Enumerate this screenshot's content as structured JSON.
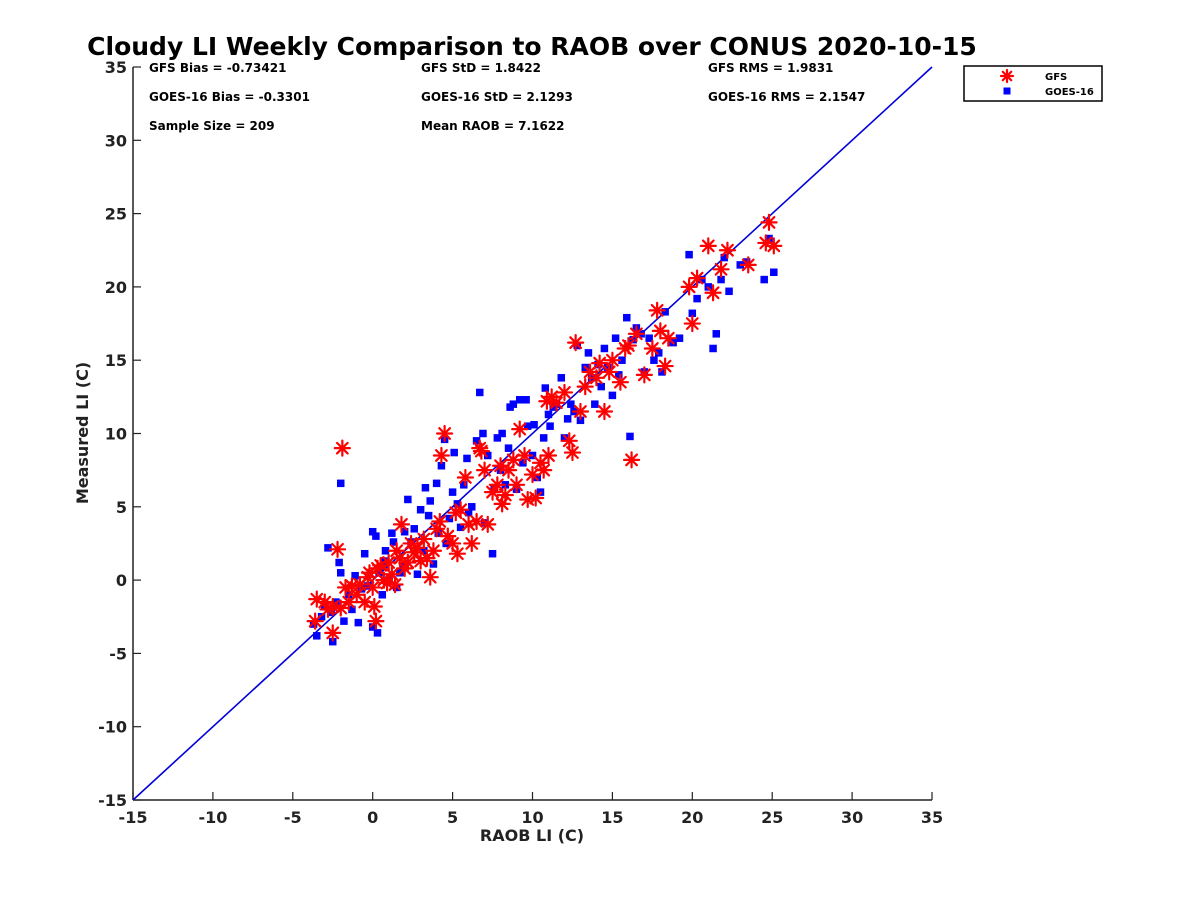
{
  "chart_data": {
    "type": "scatter",
    "title": "Cloudy LI Weekly Comparison to RAOB over CONUS 2020-10-15",
    "xlabel": "RAOB LI (C)",
    "ylabel": "Measured LI (C)",
    "xlim": [
      -15,
      35
    ],
    "ylim": [
      -15,
      35
    ],
    "xticks": [
      -15,
      -10,
      -5,
      0,
      5,
      10,
      15,
      20,
      25,
      30,
      35
    ],
    "yticks": [
      -15,
      -10,
      -5,
      0,
      5,
      10,
      15,
      20,
      25,
      30,
      35
    ],
    "grid": false,
    "legend_position": "top-right outside",
    "reference_line": {
      "type": "one-to-one",
      "from": [
        -15,
        -15
      ],
      "to": [
        35,
        35
      ],
      "color": "#0000dd"
    },
    "stats": [
      [
        "GFS Bias = -0.73421",
        "GFS StD = 1.8422",
        "GFS RMS = 1.9831"
      ],
      [
        "GOES-16 Bias = -0.3301",
        "GOES-16 StD = 2.1293",
        "GOES-16 RMS = 2.1547"
      ],
      [
        "Sample Size = 209",
        "Mean RAOB = 7.1622",
        ""
      ]
    ],
    "series": [
      {
        "name": "GFS",
        "marker": "asterisk",
        "color": "#ff0000",
        "points": [
          [
            -3.6,
            -2.8
          ],
          [
            -3.5,
            -1.3
          ],
          [
            -3.0,
            -1.5
          ],
          [
            -2.8,
            -2.0
          ],
          [
            -2.5,
            -1.8
          ],
          [
            -2.5,
            -3.6
          ],
          [
            -2.2,
            2.1
          ],
          [
            -2.0,
            -1.9
          ],
          [
            -1.9,
            9.0
          ],
          [
            -1.7,
            -0.5
          ],
          [
            -1.5,
            -1.5
          ],
          [
            -1.3,
            -0.4
          ],
          [
            -1.0,
            -1.0
          ],
          [
            -0.8,
            -0.3
          ],
          [
            -0.5,
            -1.5
          ],
          [
            -0.3,
            0.2
          ],
          [
            -0.2,
            0.5
          ],
          [
            0.0,
            -0.5
          ],
          [
            0.1,
            -1.8
          ],
          [
            0.2,
            -2.8
          ],
          [
            0.3,
            0.8
          ],
          [
            0.5,
            1.0
          ],
          [
            0.7,
            0.0
          ],
          [
            0.9,
            -0.2
          ],
          [
            1.0,
            1.2
          ],
          [
            1.2,
            0.4
          ],
          [
            1.4,
            -0.3
          ],
          [
            1.5,
            2.0
          ],
          [
            1.7,
            1.5
          ],
          [
            1.8,
            3.8
          ],
          [
            2.0,
            0.8
          ],
          [
            2.2,
            1.2
          ],
          [
            2.4,
            2.5
          ],
          [
            2.6,
            1.9
          ],
          [
            2.8,
            2.2
          ],
          [
            3.0,
            1.3
          ],
          [
            3.2,
            2.8
          ],
          [
            3.4,
            1.5
          ],
          [
            3.6,
            0.2
          ],
          [
            3.8,
            2.0
          ],
          [
            4.0,
            3.5
          ],
          [
            4.2,
            4.0
          ],
          [
            4.3,
            8.5
          ],
          [
            4.5,
            10.0
          ],
          [
            4.7,
            3.0
          ],
          [
            5.0,
            2.5
          ],
          [
            5.2,
            4.6
          ],
          [
            5.3,
            1.8
          ],
          [
            5.5,
            4.8
          ],
          [
            5.8,
            7.0
          ],
          [
            6.0,
            3.8
          ],
          [
            6.2,
            2.5
          ],
          [
            6.5,
            4.0
          ],
          [
            6.7,
            9.0
          ],
          [
            6.8,
            8.8
          ],
          [
            7.0,
            7.5
          ],
          [
            7.2,
            3.8
          ],
          [
            7.5,
            6.0
          ],
          [
            7.8,
            6.5
          ],
          [
            8.0,
            7.8
          ],
          [
            8.1,
            5.2
          ],
          [
            8.3,
            5.8
          ],
          [
            8.5,
            7.5
          ],
          [
            8.8,
            8.2
          ],
          [
            9.0,
            6.5
          ],
          [
            9.2,
            10.3
          ],
          [
            9.5,
            8.5
          ],
          [
            9.7,
            5.5
          ],
          [
            10.0,
            7.2
          ],
          [
            10.2,
            5.6
          ],
          [
            10.5,
            8.0
          ],
          [
            10.7,
            7.5
          ],
          [
            10.9,
            12.2
          ],
          [
            11.0,
            8.5
          ],
          [
            11.2,
            12.5
          ],
          [
            11.5,
            12.1
          ],
          [
            12.0,
            12.8
          ],
          [
            12.3,
            9.5
          ],
          [
            12.5,
            8.7
          ],
          [
            12.7,
            16.2
          ],
          [
            13.0,
            11.5
          ],
          [
            13.3,
            13.2
          ],
          [
            13.6,
            14.2
          ],
          [
            14.0,
            13.8
          ],
          [
            14.2,
            14.8
          ],
          [
            14.5,
            11.5
          ],
          [
            14.8,
            14.2
          ],
          [
            15.0,
            15.0
          ],
          [
            15.5,
            13.5
          ],
          [
            15.8,
            15.8
          ],
          [
            16.0,
            16.0
          ],
          [
            16.2,
            8.2
          ],
          [
            16.5,
            16.8
          ],
          [
            17.0,
            14.0
          ],
          [
            17.5,
            15.8
          ],
          [
            17.8,
            18.4
          ],
          [
            18.0,
            17.0
          ],
          [
            18.3,
            14.6
          ],
          [
            18.5,
            16.5
          ],
          [
            19.8,
            20.0
          ],
          [
            20.0,
            17.5
          ],
          [
            20.3,
            20.6
          ],
          [
            21.0,
            22.8
          ],
          [
            21.3,
            19.6
          ],
          [
            21.8,
            21.2
          ],
          [
            22.2,
            22.5
          ],
          [
            23.5,
            21.5
          ],
          [
            24.6,
            23.0
          ],
          [
            24.8,
            24.4
          ],
          [
            25.1,
            22.8
          ]
        ]
      },
      {
        "name": "GOES-16",
        "marker": "square",
        "color": "#0000ff",
        "points": [
          [
            -3.7,
            -3.0
          ],
          [
            -3.5,
            -3.8
          ],
          [
            -3.2,
            -2.5
          ],
          [
            -3.0,
            -1.8
          ],
          [
            -2.8,
            2.2
          ],
          [
            -2.6,
            -2.2
          ],
          [
            -2.5,
            -4.2
          ],
          [
            -2.3,
            -1.5
          ],
          [
            -2.1,
            1.2
          ],
          [
            -2.0,
            6.6
          ],
          [
            -2.0,
            0.5
          ],
          [
            -1.8,
            -2.8
          ],
          [
            -1.5,
            -1.0
          ],
          [
            -1.3,
            -2.0
          ],
          [
            -1.1,
            0.3
          ],
          [
            -0.9,
            -2.9
          ],
          [
            -0.7,
            -0.6
          ],
          [
            -0.5,
            1.8
          ],
          [
            -0.3,
            -0.4
          ],
          [
            0.0,
            -3.2
          ],
          [
            0.0,
            3.3
          ],
          [
            0.2,
            3.0
          ],
          [
            0.3,
            -3.6
          ],
          [
            0.4,
            0.5
          ],
          [
            0.6,
            -1.0
          ],
          [
            0.7,
            1.3
          ],
          [
            0.8,
            2.0
          ],
          [
            1.0,
            0.0
          ],
          [
            1.2,
            3.2
          ],
          [
            1.3,
            2.6
          ],
          [
            1.5,
            -0.5
          ],
          [
            1.7,
            0.5
          ],
          [
            1.9,
            1.0
          ],
          [
            2.0,
            3.3
          ],
          [
            2.2,
            5.5
          ],
          [
            2.4,
            2.6
          ],
          [
            2.6,
            3.5
          ],
          [
            2.8,
            0.4
          ],
          [
            3.0,
            4.8
          ],
          [
            3.2,
            2.0
          ],
          [
            3.3,
            6.3
          ],
          [
            3.5,
            4.4
          ],
          [
            3.6,
            5.4
          ],
          [
            3.8,
            1.1
          ],
          [
            4.0,
            6.6
          ],
          [
            4.1,
            3.2
          ],
          [
            4.3,
            7.8
          ],
          [
            4.5,
            9.6
          ],
          [
            4.6,
            2.5
          ],
          [
            4.8,
            4.2
          ],
          [
            5.0,
            6.0
          ],
          [
            5.1,
            8.7
          ],
          [
            5.3,
            5.2
          ],
          [
            5.5,
            3.6
          ],
          [
            5.7,
            6.5
          ],
          [
            5.9,
            8.3
          ],
          [
            6.0,
            4.6
          ],
          [
            6.2,
            5.0
          ],
          [
            6.5,
            9.5
          ],
          [
            6.7,
            12.8
          ],
          [
            6.9,
            10.0
          ],
          [
            7.0,
            3.9
          ],
          [
            7.2,
            8.5
          ],
          [
            7.5,
            1.8
          ],
          [
            7.6,
            6.2
          ],
          [
            7.8,
            9.7
          ],
          [
            8.0,
            7.5
          ],
          [
            8.1,
            10.0
          ],
          [
            8.3,
            6.5
          ],
          [
            8.5,
            9.0
          ],
          [
            8.6,
            11.8
          ],
          [
            8.8,
            12.0
          ],
          [
            9.0,
            6.2
          ],
          [
            9.2,
            12.3
          ],
          [
            9.4,
            8.0
          ],
          [
            9.6,
            12.3
          ],
          [
            9.7,
            10.5
          ],
          [
            10.0,
            8.5
          ],
          [
            10.1,
            10.6
          ],
          [
            10.3,
            7.0
          ],
          [
            10.5,
            6.0
          ],
          [
            10.7,
            9.7
          ],
          [
            10.8,
            13.1
          ],
          [
            11.0,
            11.3
          ],
          [
            11.1,
            10.5
          ],
          [
            11.3,
            11.8
          ],
          [
            11.5,
            12.0
          ],
          [
            11.8,
            13.8
          ],
          [
            12.0,
            9.7
          ],
          [
            12.2,
            11.0
          ],
          [
            12.4,
            12.0
          ],
          [
            12.6,
            11.5
          ],
          [
            12.8,
            16.0
          ],
          [
            13.0,
            10.9
          ],
          [
            13.3,
            14.5
          ],
          [
            13.5,
            15.5
          ],
          [
            13.7,
            13.8
          ],
          [
            13.9,
            12.0
          ],
          [
            14.1,
            14.7
          ],
          [
            14.3,
            13.2
          ],
          [
            14.5,
            15.8
          ],
          [
            14.7,
            14.5
          ],
          [
            15.0,
            12.6
          ],
          [
            15.2,
            16.5
          ],
          [
            15.4,
            14.0
          ],
          [
            15.6,
            15.0
          ],
          [
            15.9,
            17.9
          ],
          [
            16.1,
            9.8
          ],
          [
            16.3,
            16.4
          ],
          [
            16.5,
            17.2
          ],
          [
            16.8,
            16.8
          ],
          [
            17.0,
            14.2
          ],
          [
            17.3,
            16.5
          ],
          [
            17.6,
            15.0
          ],
          [
            17.9,
            15.5
          ],
          [
            18.1,
            14.2
          ],
          [
            18.3,
            18.3
          ],
          [
            18.8,
            16.2
          ],
          [
            19.2,
            16.5
          ],
          [
            19.8,
            22.2
          ],
          [
            20.0,
            18.2
          ],
          [
            20.3,
            19.2
          ],
          [
            20.6,
            20.5
          ],
          [
            21.0,
            20.0
          ],
          [
            21.3,
            15.8
          ],
          [
            21.5,
            16.8
          ],
          [
            21.8,
            20.5
          ],
          [
            22.0,
            22.0
          ],
          [
            22.3,
            19.7
          ],
          [
            23.0,
            21.5
          ],
          [
            23.4,
            21.7
          ],
          [
            24.5,
            20.5
          ],
          [
            24.8,
            23.3
          ],
          [
            25.1,
            21.0
          ]
        ]
      }
    ]
  }
}
